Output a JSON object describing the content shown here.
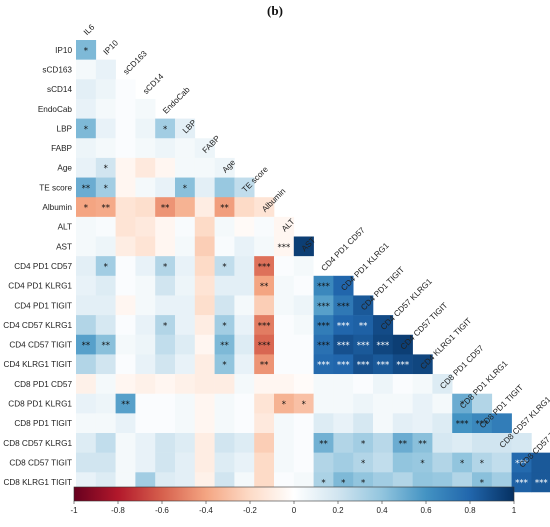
{
  "panel_label": "(b)",
  "chart_data": {
    "type": "heatmap",
    "variables": [
      "IL6",
      "IP10",
      "sCD163",
      "sCD14",
      "EndoCab",
      "LBP",
      "FABP",
      "Age",
      "TE score",
      "Albumin",
      "ALT",
      "AST",
      "CD4 PD1 CD57",
      "CD4 PD1 KLRG1",
      "CD4 PD1 TIGIT",
      "CD4 CD57 KLRG1",
      "CD4 CD57 TIGIT",
      "CD4 KLRG1 TIGIT",
      "CD8 PD1 CD57",
      "CD8 PD1 KLRG1",
      "CD8 PD1 TIGIT",
      "CD8 CD57 KLRG1",
      "CD8 CD57 TIGIT",
      "CD8 KLRG1 TIGIT"
    ],
    "layout": "lower-triangle",
    "values": [
      [
        0.45
      ],
      [
        0.05,
        0.1
      ],
      [
        0.12,
        0.08,
        0.02
      ],
      [
        0.1,
        0.05,
        0.02,
        0.05
      ],
      [
        0.45,
        0.1,
        0.02,
        0.08,
        0.35,
        0.12
      ],
      [
        0.08,
        0.05,
        0.02,
        0.05,
        0.08,
        0.05,
        0.08
      ],
      [
        0.1,
        0.2,
        -0.05,
        -0.12,
        -0.05,
        0.05,
        0.05,
        0.08
      ],
      [
        0.5,
        0.35,
        -0.05,
        0.05,
        0.1,
        0.42,
        0.12,
        0.38,
        0.25
      ],
      [
        -0.4,
        -0.38,
        -0.15,
        -0.18,
        -0.45,
        -0.35,
        -0.1,
        -0.42,
        -0.2,
        -0.15
      ],
      [
        0.05,
        0.03,
        -0.15,
        -0.12,
        -0.05,
        0.03,
        -0.2,
        0.05,
        -0.03,
        0.03,
        -0.05
      ],
      [
        0.05,
        0.08,
        -0.1,
        -0.15,
        -0.05,
        0.05,
        -0.25,
        0.03,
        0.1,
        0.05,
        -0.05,
        0.95
      ],
      [
        0.12,
        0.35,
        0.02,
        0.1,
        0.3,
        0.1,
        -0.2,
        0.25,
        0.12,
        -0.55,
        0.02,
        0.05,
        0.0
      ],
      [
        0.1,
        0.15,
        0.02,
        0.05,
        0.2,
        0.08,
        -0.15,
        0.12,
        0.12,
        -0.4,
        0.05,
        0.02,
        0.65,
        0.8
      ],
      [
        0.12,
        0.12,
        -0.05,
        0.05,
        0.1,
        0.1,
        -0.18,
        0.2,
        0.05,
        -0.25,
        0.05,
        0.08,
        0.55,
        0.72,
        0.85
      ],
      [
        0.3,
        0.18,
        0.02,
        0.1,
        0.3,
        0.1,
        -0.1,
        0.35,
        0.1,
        -0.52,
        0.02,
        0.05,
        0.7,
        0.8,
        0.82,
        0.9
      ],
      [
        0.55,
        0.42,
        0.05,
        0.08,
        0.25,
        0.15,
        -0.05,
        0.45,
        0.15,
        -0.58,
        0.02,
        0.02,
        0.75,
        0.88,
        0.85,
        0.92,
        0.95
      ],
      [
        0.3,
        0.2,
        0.02,
        0.1,
        0.2,
        0.1,
        -0.1,
        0.4,
        0.1,
        -0.45,
        0.02,
        0.02,
        0.78,
        0.8,
        0.88,
        0.85,
        0.9,
        0.92
      ],
      [
        -0.08,
        0.05,
        -0.05,
        -0.08,
        -0.05,
        -0.08,
        -0.1,
        -0.1,
        0.05,
        -0.05,
        -0.05,
        -0.02,
        0.05,
        0.05,
        0.02,
        0.08,
        0.02,
        0.05,
        0.15
      ],
      [
        0.1,
        0.08,
        0.55,
        0.02,
        0.02,
        0.05,
        -0.05,
        0.05,
        0.02,
        -0.15,
        -0.35,
        -0.3,
        0.05,
        0.05,
        0.08,
        0.05,
        0.05,
        0.1,
        0.05,
        0.5,
        0.3
      ],
      [
        0.05,
        0.05,
        0.1,
        0.02,
        0.02,
        0.05,
        -0.05,
        0.05,
        0.02,
        -0.12,
        0.05,
        0.02,
        0.15,
        0.1,
        0.18,
        0.05,
        0.12,
        0.1,
        0.15,
        0.6,
        0.65,
        0.7
      ],
      [
        0.15,
        0.25,
        0.05,
        0.1,
        0.2,
        0.15,
        -0.1,
        0.2,
        0.15,
        -0.25,
        0.05,
        0.02,
        0.48,
        0.3,
        0.35,
        0.28,
        0.5,
        0.42,
        0.18,
        0.15,
        0.2,
        0.2,
        0.18
      ],
      [
        0.2,
        0.2,
        0.05,
        0.1,
        0.2,
        0.12,
        -0.1,
        0.15,
        0.1,
        -0.2,
        0.05,
        0.02,
        0.3,
        0.35,
        0.3,
        0.25,
        0.4,
        0.38,
        0.3,
        0.4,
        0.3,
        0.25,
        0.78,
        0.85
      ],
      [
        0.1,
        0.15,
        0.05,
        0.35,
        0.15,
        0.12,
        -0.08,
        0.2,
        0.05,
        -0.2,
        0.02,
        0.05,
        0.32,
        0.45,
        0.4,
        0.35,
        0.3,
        0.4,
        0.38,
        0.3,
        0.42,
        0.35,
        0.82,
        0.85,
        0.8
      ]
    ],
    "significance": [
      [
        {
          "c": 0,
          "s": "*"
        }
      ],
      [],
      [],
      [],
      [
        {
          "c": 0,
          "s": "*"
        },
        {
          "c": 4,
          "s": "*"
        }
      ],
      [],
      [
        {
          "c": 1,
          "s": "*"
        }
      ],
      [
        {
          "c": 0,
          "s": "**"
        },
        {
          "c": 1,
          "s": "*"
        },
        {
          "c": 5,
          "s": "*"
        }
      ],
      [
        {
          "c": 0,
          "s": "*"
        },
        {
          "c": 1,
          "s": "**"
        },
        {
          "c": 4,
          "s": "**"
        },
        {
          "c": 7,
          "s": "**"
        }
      ],
      [],
      [
        {
          "c": 10,
          "s": "***"
        }
      ],
      [
        {
          "c": 1,
          "s": "*"
        },
        {
          "c": 4,
          "s": "*"
        },
        {
          "c": 7,
          "s": "*"
        },
        {
          "c": 9,
          "s": "***"
        }
      ],
      [
        {
          "c": 9,
          "s": "**"
        },
        {
          "c": 12,
          "s": "***"
        }
      ],
      [
        {
          "c": 12,
          "s": "***"
        },
        {
          "c": 13,
          "s": "***"
        }
      ],
      [
        {
          "c": 4,
          "s": "*"
        },
        {
          "c": 7,
          "s": "*"
        },
        {
          "c": 9,
          "s": "***"
        },
        {
          "c": 12,
          "s": "***"
        },
        {
          "c": 13,
          "s": "***"
        },
        {
          "c": 14,
          "s": "**"
        }
      ],
      [
        {
          "c": 0,
          "s": "**"
        },
        {
          "c": 1,
          "s": "**"
        },
        {
          "c": 7,
          "s": "**"
        },
        {
          "c": 9,
          "s": "***"
        },
        {
          "c": 12,
          "s": "***"
        },
        {
          "c": 13,
          "s": "***"
        },
        {
          "c": 14,
          "s": "***"
        },
        {
          "c": 15,
          "s": "***"
        }
      ],
      [
        {
          "c": 7,
          "s": "*"
        },
        {
          "c": 9,
          "s": "**"
        },
        {
          "c": 12,
          "s": "***"
        },
        {
          "c": 13,
          "s": "***"
        },
        {
          "c": 14,
          "s": "***"
        },
        {
          "c": 15,
          "s": "***"
        },
        {
          "c": 16,
          "s": "***"
        }
      ],
      [],
      [
        {
          "c": 2,
          "s": "**"
        },
        {
          "c": 10,
          "s": "*"
        },
        {
          "c": 11,
          "s": "*"
        },
        {
          "c": 19,
          "s": "*"
        }
      ],
      [
        {
          "c": 19,
          "s": "***"
        },
        {
          "c": 20,
          "s": "***"
        }
      ],
      [
        {
          "c": 12,
          "s": "**"
        },
        {
          "c": 14,
          "s": "*"
        },
        {
          "c": 16,
          "s": "**"
        },
        {
          "c": 17,
          "s": "**"
        }
      ],
      [
        {
          "c": 14,
          "s": "*"
        },
        {
          "c": 17,
          "s": "*"
        },
        {
          "c": 19,
          "s": "*"
        },
        {
          "c": 20,
          "s": "*"
        },
        {
          "c": 22,
          "s": "***"
        }
      ],
      [
        {
          "c": 12,
          "s": "*"
        },
        {
          "c": 13,
          "s": "*"
        },
        {
          "c": 14,
          "s": "*"
        },
        {
          "c": 20,
          "s": "*"
        },
        {
          "c": 22,
          "s": "***"
        },
        {
          "c": 23,
          "s": "***"
        }
      ]
    ],
    "colorbar": {
      "min": -1,
      "max": 1,
      "ticks": [
        "-1",
        "-0.8",
        "-0.6",
        "-0.4",
        "-0.2",
        "0",
        "0.2",
        "0.4",
        "0.6",
        "0.8",
        "1"
      ],
      "colors": [
        "#67001f",
        "#b2182b",
        "#d6604d",
        "#f4a582",
        "#fddbc7",
        "#ffffff",
        "#d1e5f0",
        "#92c5de",
        "#4393c3",
        "#2166ac",
        "#053061"
      ]
    }
  }
}
